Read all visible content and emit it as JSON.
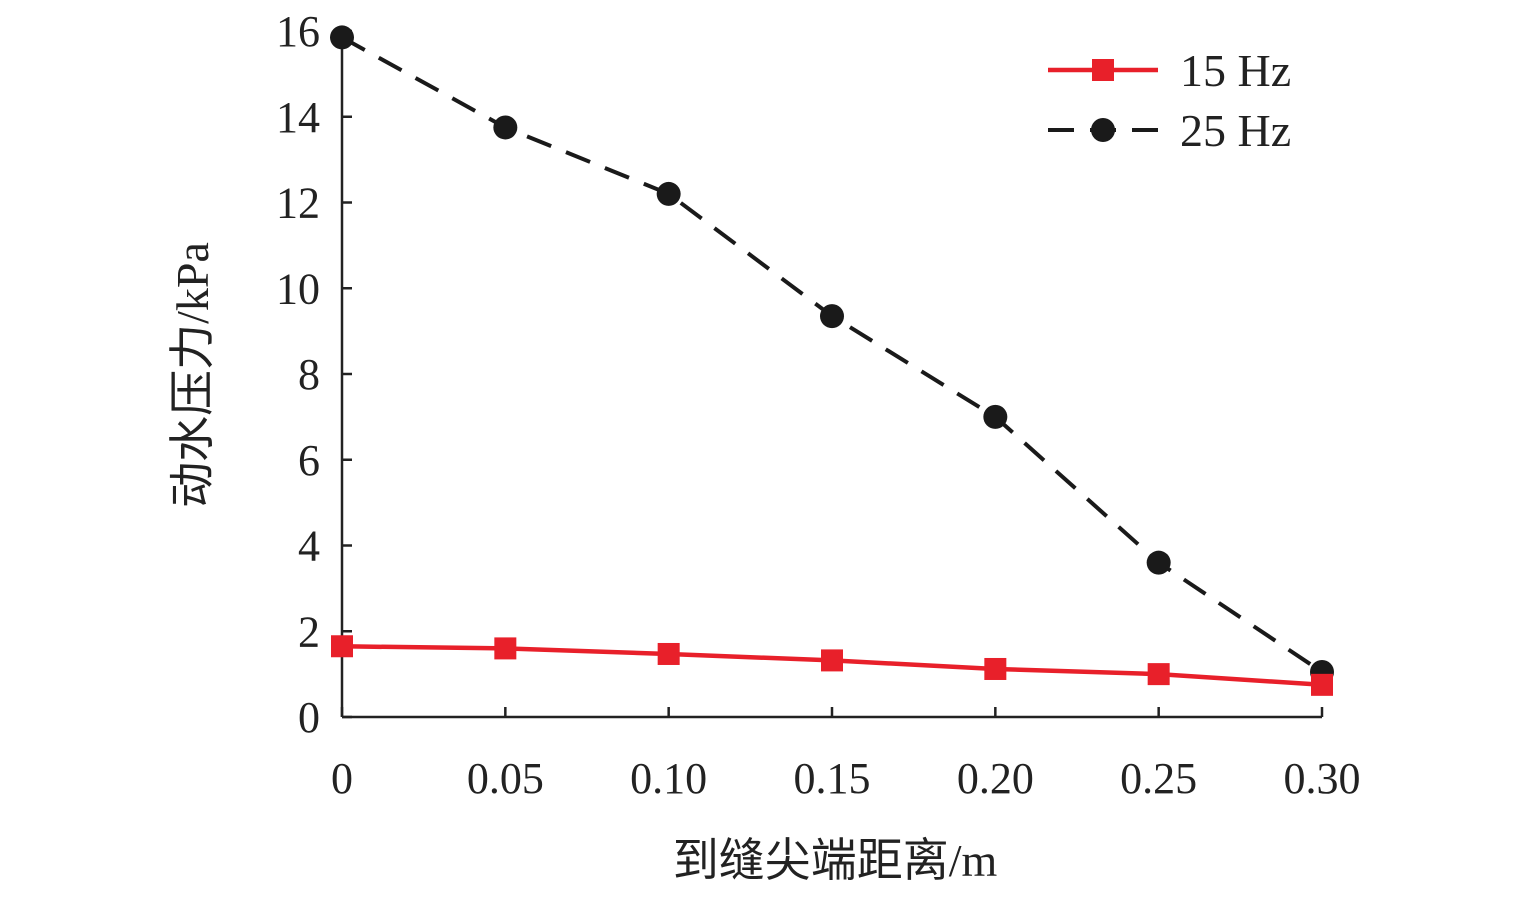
{
  "chart_data": {
    "type": "line",
    "xlabel": "到缝尖端距离/m",
    "ylabel": "动水压力/kPa",
    "x": [
      0,
      0.05,
      0.1,
      0.15,
      0.2,
      0.25,
      0.3
    ],
    "xticks": [
      0,
      0.05,
      0.1,
      0.15,
      0.2,
      0.25,
      0.3
    ],
    "xtick_labels": [
      "0",
      "0.05",
      "0.10",
      "0.15",
      "0.20",
      "0.25",
      "0.30"
    ],
    "yticks": [
      0,
      2,
      4,
      6,
      8,
      10,
      12,
      14,
      16
    ],
    "ytick_labels": [
      "0",
      "2",
      "4",
      "6",
      "8",
      "10",
      "12",
      "14",
      "16"
    ],
    "xlim": [
      0,
      0.3
    ],
    "ylim": [
      0,
      16
    ],
    "grid": false,
    "legend_position": "top-right",
    "series": [
      {
        "name": "15 Hz",
        "values": [
          1.65,
          1.6,
          1.47,
          1.32,
          1.12,
          1.0,
          0.75
        ],
        "color": "#e8202a",
        "line_style": "solid",
        "marker": "square"
      },
      {
        "name": "25 Hz",
        "values": [
          15.85,
          13.75,
          12.2,
          9.35,
          7.0,
          3.6,
          1.05
        ],
        "color": "#1a1a1a",
        "line_style": "dashed",
        "marker": "circle"
      }
    ]
  }
}
